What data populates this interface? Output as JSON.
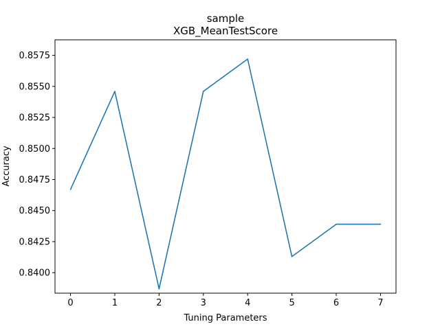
{
  "chart_data": {
    "type": "line",
    "title": "sample",
    "subtitle": "XGB_MeanTestScore",
    "xlabel": "Tuning Parameters",
    "ylabel": "Accuracy",
    "x": [
      0,
      1,
      2,
      3,
      4,
      5,
      6,
      7
    ],
    "series": [
      {
        "values": [
          0.8467,
          0.8546,
          0.8387,
          0.8546,
          0.8572,
          0.8413,
          0.8439,
          0.8439
        ],
        "color": "#1f77b4"
      }
    ],
    "xlim": [
      -0.35,
      7.35
    ],
    "ylim": [
      0.83835,
      0.85875
    ],
    "xticks": [
      0,
      1,
      2,
      3,
      4,
      5,
      6,
      7
    ],
    "yticks": [
      0.84,
      0.8425,
      0.845,
      0.8475,
      0.85,
      0.8525,
      0.855,
      0.8575
    ],
    "ytick_labels": [
      "0.8400",
      "0.8425",
      "0.8450",
      "0.8475",
      "0.8500",
      "0.8525",
      "0.8550",
      "0.8575"
    ],
    "grid": false,
    "legend": "none"
  }
}
